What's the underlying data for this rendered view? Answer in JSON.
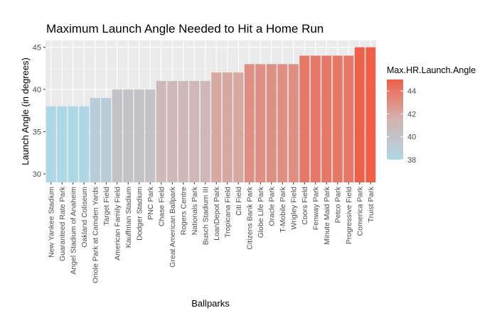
{
  "chart_data": {
    "type": "bar",
    "title": "Maximum Launch Angle Needed to Hit a Home Run",
    "xlabel": "Ballparks",
    "ylabel": "Launch Angle (in degrees)",
    "ylim": [
      29,
      45.8
    ],
    "yticks": [
      30,
      35,
      40,
      45
    ],
    "categories": [
      "New Yankee Stadium",
      "Guaranteed Rate Park",
      "Angel Stadium of Anaheim",
      "Oakland Coliseum",
      "Oriole Park at Camden Yards",
      "Target Field",
      "American Family Field",
      "Kauffman Stadium",
      "Dodger Stadium",
      "PNC Park",
      "Chase Field",
      "Great American Ballpark",
      "Rogers Centre",
      "Nationals Park",
      "Busch Stadium III",
      "LoanDepot Park",
      "Tropicana Field",
      "Citi Field",
      "Citizens Bank Park",
      "Globe Life Park",
      "Oracle Park",
      "T-Mobile Park",
      "Wrigley Field",
      "Coors Field",
      "Fenway Park",
      "Minute Maid Park",
      "Petco Park",
      "Progressive Field",
      "Comerica Park",
      "Truist Park"
    ],
    "values": [
      38,
      38,
      38,
      38,
      39,
      39,
      40,
      40,
      40,
      40,
      41,
      41,
      41,
      41,
      41,
      42,
      42,
      42,
      43,
      43,
      43,
      43,
      43,
      44,
      44,
      44,
      44,
      44,
      45,
      45
    ],
    "grid": true,
    "legend": {
      "title": "Max.HR.Launch.Angle",
      "placement": "right",
      "type": "colorbar",
      "range": [
        38,
        45
      ],
      "ticks": [
        38,
        40,
        42,
        44
      ],
      "color_low": "#add8e6",
      "color_mid": "#d3b3b0",
      "color_high": "#ee6048"
    },
    "colors": {
      "panel_background": "#ebebeb",
      "grid_major": "#ffffff",
      "grid_minor": "#f2f2f2"
    }
  }
}
